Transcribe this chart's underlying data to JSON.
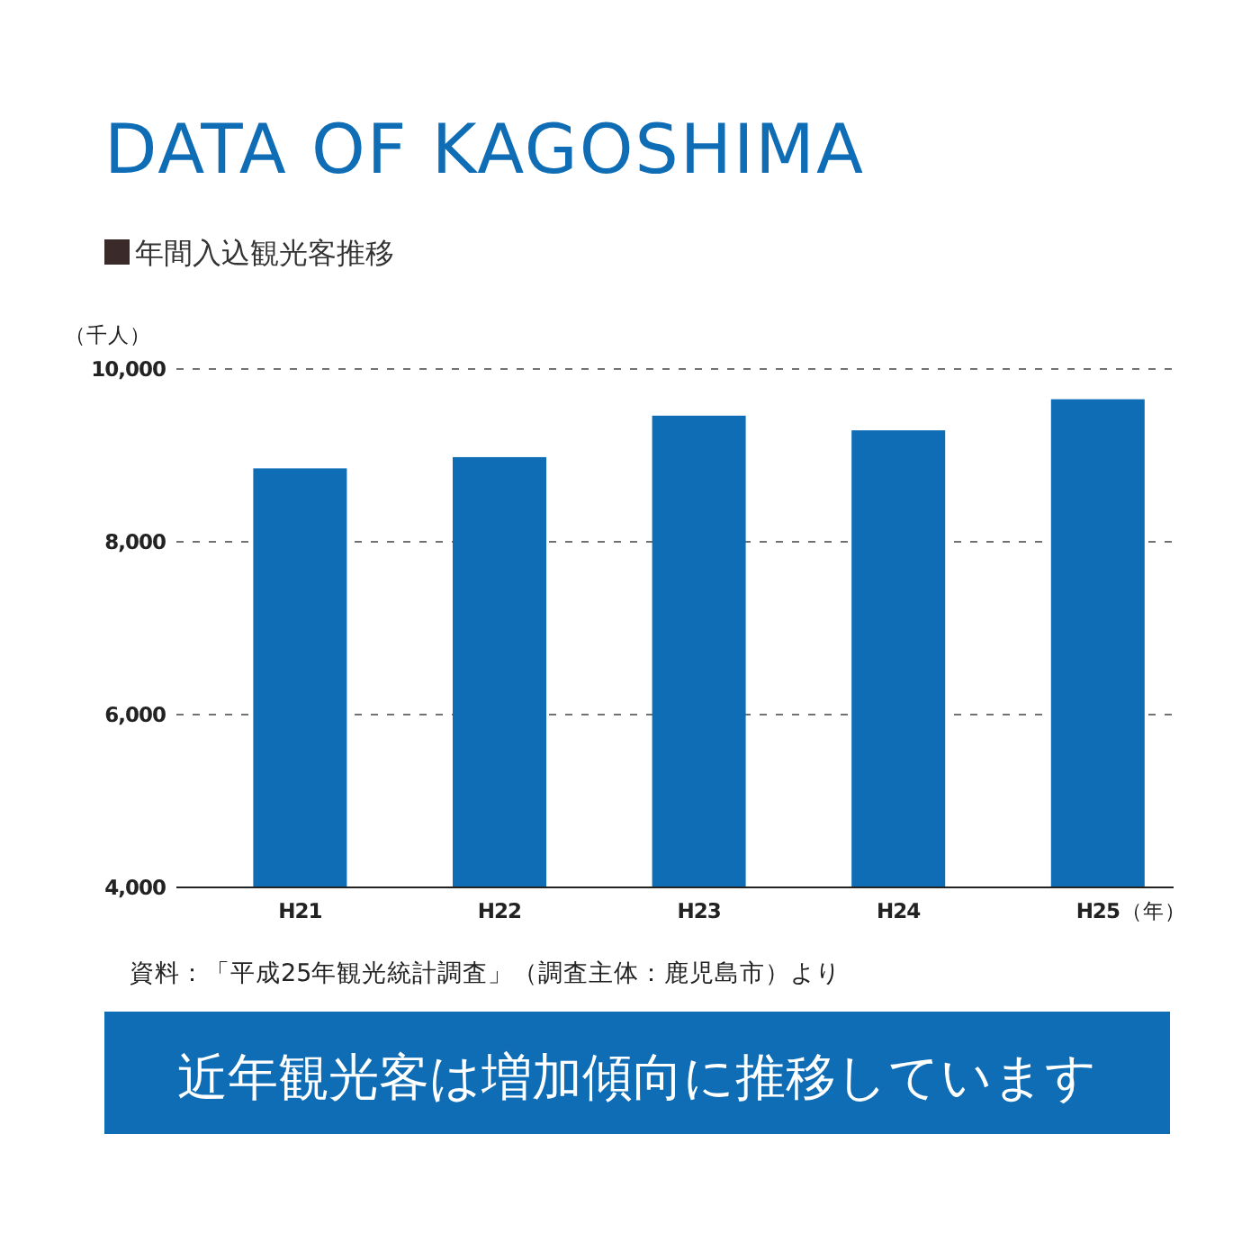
{
  "chart_data": {
    "type": "bar",
    "title": "DATA OF KAGOSHIMA",
    "subtitle": "年間入込観光客推移",
    "ylabel": "（千人）",
    "xlabel": "（年）",
    "categories": [
      "H21",
      "H22",
      "H23",
      "H24",
      "H25"
    ],
    "values": [
      8850,
      8980,
      9460,
      9290,
      9650
    ],
    "color": "#0f6db6",
    "ylim": [
      4000,
      10000
    ],
    "yticks": [
      {
        "value": 4000,
        "label": "4,000"
      },
      {
        "value": 6000,
        "label": "6,000"
      },
      {
        "value": 8000,
        "label": "8,000"
      },
      {
        "value": 10000,
        "label": "10,000"
      }
    ],
    "grid": "y",
    "annotations": [
      "資料：「平成25年観光統計調査」（調査主体：鹿児島市）より",
      "近年観光客は増加傾向に推移しています"
    ]
  }
}
